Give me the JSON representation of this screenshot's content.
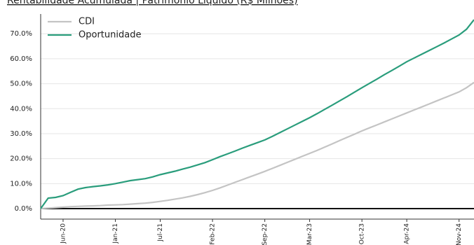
{
  "chart_data": {
    "type": "line",
    "title": "Rentabilidade Acumulada | Patrimônio Líquido (R$ Milhões)",
    "categories": [
      null,
      null,
      null,
      "Jun-20",
      null,
      null,
      null,
      null,
      null,
      null,
      "Jan-21",
      null,
      null,
      null,
      null,
      null,
      "Jul-21",
      null,
      null,
      null,
      null,
      null,
      null,
      "Feb-22",
      null,
      null,
      null,
      null,
      null,
      null,
      "Sep-22",
      null,
      null,
      null,
      null,
      null,
      "Mar-23",
      null,
      null,
      null,
      null,
      null,
      null,
      "Oct-23",
      null,
      null,
      null,
      null,
      null,
      "Apr-24",
      null,
      null,
      null,
      null,
      null,
      null,
      "Nov-24",
      null,
      null
    ],
    "series": [
      {
        "name": "CDI",
        "color": "#c4c4c4",
        "values": [
          0,
          0.2,
          0.4,
          0.6,
          0.8,
          0.9,
          1.0,
          1.1,
          1.2,
          1.4,
          1.5,
          1.6,
          1.8,
          2.0,
          2.2,
          2.5,
          2.9,
          3.3,
          3.8,
          4.3,
          4.9,
          5.6,
          6.4,
          7.3,
          8.3,
          9.4,
          10.5,
          11.6,
          12.7,
          13.8,
          14.9,
          16.1,
          17.3,
          18.5,
          19.7,
          20.9,
          22.1,
          23.3,
          24.6,
          25.9,
          27.2,
          28.5,
          29.8,
          31.1,
          32.3,
          33.5,
          34.7,
          35.9,
          37.1,
          38.3,
          39.5,
          40.7,
          41.9,
          43.1,
          44.3,
          45.5,
          46.7,
          48.4,
          50.5
        ]
      },
      {
        "name": "Oportunidade",
        "color": "#2a9d7c",
        "values": [
          0,
          4.2,
          4.5,
          5.2,
          6.5,
          7.8,
          8.4,
          8.8,
          9.1,
          9.5,
          10.0,
          10.6,
          11.2,
          11.6,
          12.0,
          12.7,
          13.6,
          14.3,
          15.0,
          15.8,
          16.6,
          17.5,
          18.4,
          19.6,
          20.8,
          21.9,
          23.0,
          24.2,
          25.3,
          26.4,
          27.5,
          28.9,
          30.4,
          31.9,
          33.4,
          34.9,
          36.4,
          38.0,
          39.7,
          41.4,
          43.1,
          44.8,
          46.6,
          48.4,
          50.1,
          51.8,
          53.6,
          55.3,
          57.0,
          58.8,
          60.3,
          61.8,
          63.3,
          64.8,
          66.3,
          67.9,
          69.5,
          71.8,
          75.6
        ]
      }
    ],
    "ylim": [
      -4.2,
      77.9
    ],
    "yticks": [
      {
        "value": 0,
        "label": "0.0%"
      },
      {
        "value": 10,
        "label": "10.0%"
      },
      {
        "value": 20,
        "label": "20.0%"
      },
      {
        "value": 30,
        "label": "30.0%"
      },
      {
        "value": 40,
        "label": "40.0%"
      },
      {
        "value": 50,
        "label": "50.0%"
      },
      {
        "value": 60,
        "label": "60.0%"
      },
      {
        "value": 70,
        "label": "70.0%"
      }
    ],
    "grid": true,
    "legend": "upper-left"
  }
}
